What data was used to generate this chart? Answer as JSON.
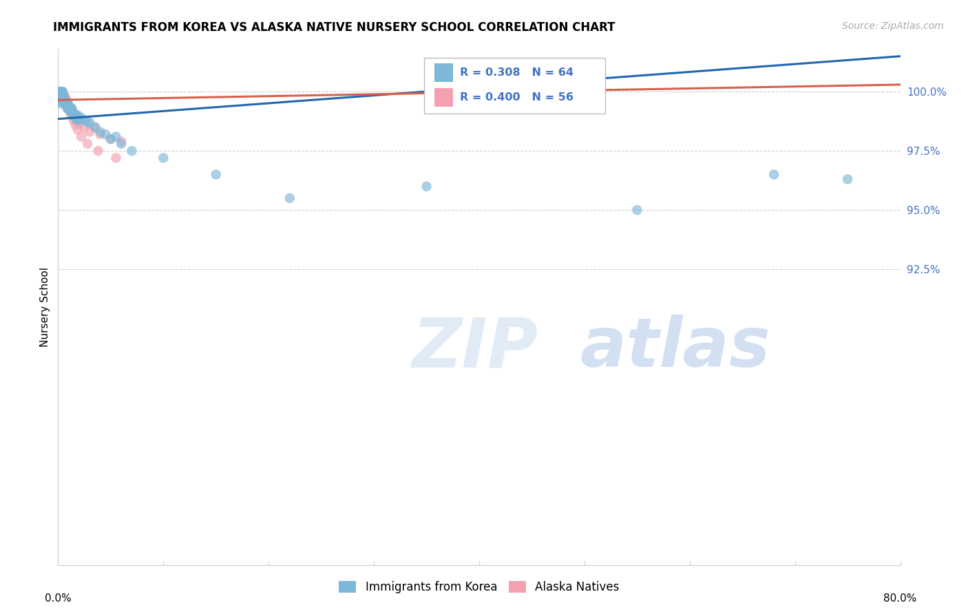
{
  "title": "IMMIGRANTS FROM KOREA VS ALASKA NATIVE NURSERY SCHOOL CORRELATION CHART",
  "source": "Source: ZipAtlas.com",
  "ylabel": "Nursery School",
  "xmin": 0.0,
  "xmax": 80.0,
  "ymin": 80.0,
  "ymax": 101.8,
  "blue_color": "#7db8d8",
  "pink_color": "#f4a0b0",
  "blue_line_color": "#2166ac",
  "pink_line_color": "#d6604d",
  "legend_R_blue": "R = 0.308",
  "legend_N_blue": "N = 64",
  "legend_R_pink": "R = 0.400",
  "legend_N_pink": "N = 56",
  "blue_label": "Immigrants from Korea",
  "pink_label": "Alaska Natives",
  "watermark_zip": "ZIP",
  "watermark_atlas": "atlas",
  "ytick_vals": [
    92.5,
    95.0,
    97.5,
    100.0
  ],
  "grid_color": "#cccccc",
  "blue_trend_x0": 0.0,
  "blue_trend_x1": 80.0,
  "blue_trend_y0": 98.85,
  "blue_trend_y1": 101.5,
  "pink_trend_x0": 0.0,
  "pink_trend_x1": 80.0,
  "pink_trend_y0": 99.65,
  "pink_trend_y1": 100.3,
  "blue_x": [
    0.05,
    0.08,
    0.1,
    0.12,
    0.15,
    0.18,
    0.2,
    0.22,
    0.25,
    0.28,
    0.3,
    0.32,
    0.35,
    0.38,
    0.4,
    0.42,
    0.45,
    0.48,
    0.5,
    0.55,
    0.6,
    0.65,
    0.7,
    0.75,
    0.8,
    0.85,
    0.9,
    0.95,
    1.0,
    1.05,
    1.1,
    1.15,
    1.2,
    1.25,
    1.3,
    1.35,
    1.4,
    1.45,
    1.5,
    1.55,
    1.6,
    1.65,
    1.7,
    1.8,
    1.9,
    2.0,
    2.2,
    2.5,
    2.8,
    3.0,
    3.5,
    4.0,
    4.5,
    5.0,
    5.5,
    6.0,
    7.0,
    10.0,
    15.0,
    22.0,
    35.0,
    55.0,
    68.0,
    75.0
  ],
  "blue_y": [
    99.5,
    99.6,
    99.7,
    99.8,
    100.0,
    100.0,
    100.0,
    100.0,
    99.9,
    99.8,
    100.0,
    99.9,
    100.0,
    99.9,
    100.0,
    100.0,
    99.8,
    99.7,
    99.8,
    99.6,
    99.7,
    99.5,
    99.6,
    99.4,
    99.5,
    99.3,
    99.5,
    99.4,
    99.3,
    99.4,
    99.2,
    99.3,
    99.2,
    99.3,
    99.3,
    99.2,
    99.1,
    99.0,
    99.1,
    99.0,
    99.0,
    98.9,
    99.0,
    98.8,
    99.0,
    98.8,
    98.9,
    98.8,
    98.7,
    98.7,
    98.5,
    98.3,
    98.2,
    98.0,
    98.1,
    97.8,
    97.5,
    97.2,
    96.5,
    95.5,
    96.0,
    95.0,
    96.5,
    96.3
  ],
  "pink_x": [
    0.05,
    0.07,
    0.1,
    0.12,
    0.15,
    0.18,
    0.2,
    0.22,
    0.25,
    0.28,
    0.3,
    0.32,
    0.35,
    0.38,
    0.4,
    0.42,
    0.45,
    0.5,
    0.55,
    0.6,
    0.65,
    0.7,
    0.75,
    0.8,
    0.85,
    0.9,
    1.0,
    1.1,
    1.2,
    1.4,
    1.6,
    1.8,
    2.0,
    2.5,
    3.0,
    3.5,
    4.0,
    5.0,
    6.0,
    0.08,
    0.16,
    0.24,
    0.36,
    0.48,
    0.58,
    0.72,
    0.88,
    1.05,
    1.25,
    1.45,
    1.65,
    1.85,
    2.2,
    2.8,
    3.8,
    5.5
  ],
  "pink_y": [
    100.0,
    100.0,
    100.0,
    100.0,
    100.0,
    100.0,
    100.0,
    100.0,
    99.9,
    100.0,
    100.0,
    99.9,
    100.0,
    100.0,
    100.0,
    100.0,
    99.9,
    99.9,
    99.8,
    99.7,
    99.7,
    99.8,
    99.6,
    99.6,
    99.5,
    99.6,
    99.4,
    99.3,
    99.2,
    99.0,
    98.9,
    98.8,
    98.7,
    98.5,
    98.3,
    98.5,
    98.2,
    98.0,
    97.9,
    100.0,
    100.0,
    99.9,
    99.8,
    99.7,
    99.6,
    99.5,
    99.4,
    99.2,
    99.0,
    98.8,
    98.6,
    98.4,
    98.1,
    97.8,
    97.5,
    97.2
  ]
}
